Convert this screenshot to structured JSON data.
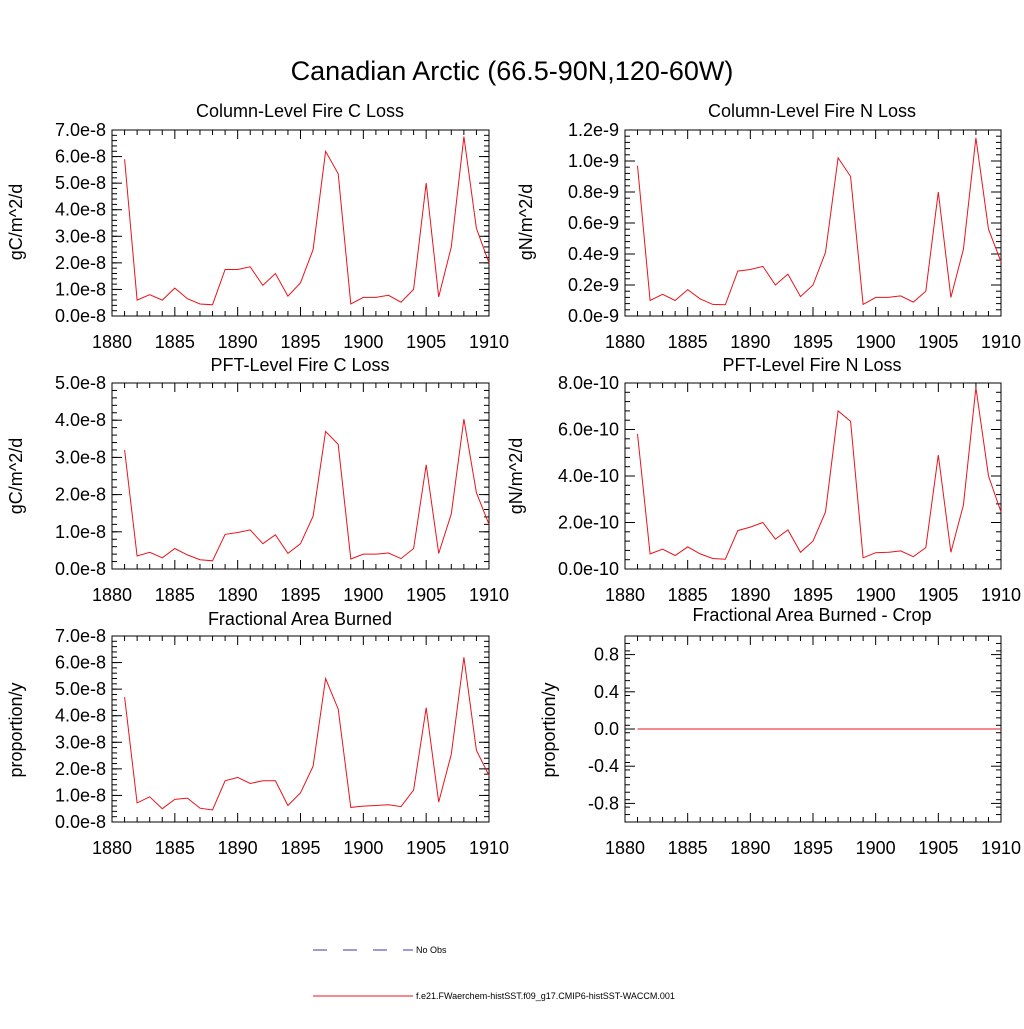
{
  "figure": {
    "title": "Canadian Arctic (66.5-90N,120-60W)"
  },
  "colors": {
    "model_line": "#e8141c",
    "obs_line": "#3a3aa8",
    "axis": "#000000"
  },
  "legend": {
    "obs_label": "No Obs",
    "model_label": "f.e21.FWaerchem-histSST.f09_g17.CMIP6-histSST-WACCM.001"
  },
  "chart_data": [
    {
      "type": "line",
      "title": "Column-Level Fire C Loss",
      "ylabel": "gC/m^2/d",
      "xlim": [
        1880,
        1910
      ],
      "ylim": [
        0,
        7e-08
      ],
      "x_ticks": [
        "1880",
        "1885",
        "1890",
        "1895",
        "1900",
        "1905",
        "1910"
      ],
      "y_ticks": [
        "0.0e-8",
        "1.0e-8",
        "2.0e-8",
        "3.0e-8",
        "4.0e-8",
        "5.0e-8",
        "6.0e-8",
        "7.0e-8"
      ],
      "x": [
        1881,
        1882,
        1883,
        1884,
        1885,
        1886,
        1887,
        1888,
        1889,
        1890,
        1891,
        1892,
        1893,
        1894,
        1895,
        1896,
        1897,
        1898,
        1899,
        1900,
        1901,
        1902,
        1903,
        1904,
        1905,
        1906,
        1907,
        1908,
        1909,
        1910
      ],
      "values": [
        5.9e-08,
        6e-09,
        8e-09,
        6e-09,
        1.05e-08,
        6.5e-09,
        4.5e-09,
        4.2e-09,
        1.75e-08,
        1.75e-08,
        1.85e-08,
        1.15e-08,
        1.6e-08,
        7.5e-09,
        1.25e-08,
        2.5e-08,
        6.2e-08,
        5.35e-08,
        4.5e-09,
        7e-09,
        7e-09,
        7.8e-09,
        5.2e-09,
        1e-08,
        5e-08,
        7.2e-09,
        2.6e-08,
        6.75e-08,
        3.3e-08,
        2e-08
      ]
    },
    {
      "type": "line",
      "title": "Column-Level Fire N Loss",
      "ylabel": "gN/m^2/d",
      "xlim": [
        1880,
        1910
      ],
      "ylim": [
        0,
        1.2e-09
      ],
      "x_ticks": [
        "1880",
        "1885",
        "1890",
        "1895",
        "1900",
        "1905",
        "1910"
      ],
      "y_ticks": [
        "0.0e-9",
        "0.2e-9",
        "0.4e-9",
        "0.6e-9",
        "0.8e-9",
        "1.0e-9",
        "1.2e-9"
      ],
      "x": [
        1881,
        1882,
        1883,
        1884,
        1885,
        1886,
        1887,
        1888,
        1889,
        1890,
        1891,
        1892,
        1893,
        1894,
        1895,
        1896,
        1897,
        1898,
        1899,
        1900,
        1901,
        1902,
        1903,
        1904,
        1905,
        1906,
        1907,
        1908,
        1909,
        1910
      ],
      "values": [
        9.7e-10,
        1e-10,
        1.4e-10,
        1e-10,
        1.7e-10,
        1.1e-10,
        7.5e-11,
        7.2e-11,
        2.9e-10,
        3e-10,
        3.2e-10,
        2e-10,
        2.7e-10,
        1.25e-10,
        2e-10,
        4.1e-10,
        1.02e-09,
        9e-10,
        7.5e-11,
        1.2e-10,
        1.2e-10,
        1.3e-10,
        9e-11,
        1.6e-10,
        8e-10,
        1.2e-10,
        4.3e-10,
        1.15e-09,
        5.6e-10,
        3.5e-10
      ]
    },
    {
      "type": "line",
      "title": "PFT-Level Fire C Loss",
      "ylabel": "gC/m^2/d",
      "xlim": [
        1880,
        1910
      ],
      "ylim": [
        0,
        5e-08
      ],
      "x_ticks": [
        "1880",
        "1885",
        "1890",
        "1895",
        "1900",
        "1905",
        "1910"
      ],
      "y_ticks": [
        "0.0e-8",
        "1.0e-8",
        "2.0e-8",
        "3.0e-8",
        "4.0e-8",
        "5.0e-8"
      ],
      "x": [
        1881,
        1882,
        1883,
        1884,
        1885,
        1886,
        1887,
        1888,
        1889,
        1890,
        1891,
        1892,
        1893,
        1894,
        1895,
        1896,
        1897,
        1898,
        1899,
        1900,
        1901,
        1902,
        1903,
        1904,
        1905,
        1906,
        1907,
        1908,
        1909,
        1910
      ],
      "values": [
        3.2e-08,
        3.5e-09,
        4.5e-09,
        3e-09,
        5.5e-09,
        3.8e-09,
        2.5e-09,
        2.2e-09,
        9.3e-09,
        9.8e-09,
        1.05e-08,
        6.8e-09,
        9.2e-09,
        4.2e-09,
        6.8e-09,
        1.42e-08,
        3.7e-08,
        3.35e-08,
        2.7e-09,
        4e-09,
        4e-09,
        4.3e-09,
        2.8e-09,
        5.5e-09,
        2.8e-08,
        4.2e-09,
        1.48e-08,
        4.03e-08,
        2.05e-08,
        1.2e-08
      ]
    },
    {
      "type": "line",
      "title": "PFT-Level Fire N Loss",
      "ylabel": "gN/m^2/d",
      "xlim": [
        1880,
        1910
      ],
      "ylim": [
        0,
        8e-10
      ],
      "x_ticks": [
        "1880",
        "1885",
        "1890",
        "1895",
        "1900",
        "1905",
        "1910"
      ],
      "y_ticks": [
        "0.0e-10",
        "2.0e-10",
        "4.0e-10",
        "6.0e-10",
        "8.0e-10"
      ],
      "x": [
        1881,
        1882,
        1883,
        1884,
        1885,
        1886,
        1887,
        1888,
        1889,
        1890,
        1891,
        1892,
        1893,
        1894,
        1895,
        1896,
        1897,
        1898,
        1899,
        1900,
        1901,
        1902,
        1903,
        1904,
        1905,
        1906,
        1907,
        1908,
        1909,
        1910
      ],
      "values": [
        5.8e-10,
        6.5e-11,
        8.5e-11,
        5.8e-11,
        9.5e-11,
        6.5e-11,
        4.5e-11,
        4.2e-11,
        1.65e-10,
        1.8e-10,
        2e-10,
        1.28e-10,
        1.68e-10,
        7.2e-11,
        1.2e-10,
        2.45e-10,
        6.8e-10,
        6.35e-10,
        4.8e-11,
        7e-11,
        7.2e-11,
        7.8e-11,
        5.3e-11,
        9.2e-11,
        4.9e-10,
        7.2e-11,
        2.75e-10,
        7.8e-10,
        4e-10,
        2.45e-10
      ]
    },
    {
      "type": "line",
      "title": "Fractional Area Burned",
      "ylabel": "proportion/y",
      "xlim": [
        1880,
        1910
      ],
      "ylim": [
        0,
        7e-08
      ],
      "x_ticks": [
        "1880",
        "1885",
        "1890",
        "1895",
        "1900",
        "1905",
        "1910"
      ],
      "y_ticks": [
        "0.0e-8",
        "1.0e-8",
        "2.0e-8",
        "3.0e-8",
        "4.0e-8",
        "5.0e-8",
        "6.0e-8",
        "7.0e-8"
      ],
      "x": [
        1881,
        1882,
        1883,
        1884,
        1885,
        1886,
        1887,
        1888,
        1889,
        1890,
        1891,
        1892,
        1893,
        1894,
        1895,
        1896,
        1897,
        1898,
        1899,
        1900,
        1901,
        1902,
        1903,
        1904,
        1905,
        1906,
        1907,
        1908,
        1909,
        1910
      ],
      "values": [
        4.7e-08,
        7.2e-09,
        9.5e-09,
        5e-09,
        8.5e-09,
        9e-09,
        5.2e-09,
        4.5e-09,
        1.55e-08,
        1.68e-08,
        1.45e-08,
        1.55e-08,
        1.55e-08,
        6.2e-09,
        1.1e-08,
        2.1e-08,
        5.4e-08,
        4.25e-08,
        5.5e-09,
        6e-09,
        6.2e-09,
        6.5e-09,
        5.8e-09,
        1.2e-08,
        4.3e-08,
        7.5e-09,
        2.55e-08,
        6.2e-08,
        2.7e-08,
        1.75e-08
      ]
    },
    {
      "type": "line",
      "title": "Fractional Area Burned - Crop",
      "ylabel": "proportion/y",
      "xlim": [
        1880,
        1910
      ],
      "ylim": [
        -1.0,
        1.0
      ],
      "x_ticks": [
        "1880",
        "1885",
        "1890",
        "1895",
        "1900",
        "1905",
        "1910"
      ],
      "y_ticks": [
        "-0.8",
        "-0.4",
        "0.0",
        "0.4",
        "0.8"
      ],
      "x": [
        1881,
        1910
      ],
      "values": [
        0,
        0
      ]
    }
  ]
}
